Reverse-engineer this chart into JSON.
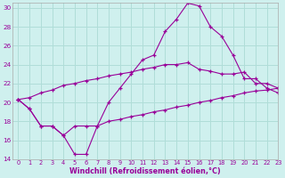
{
  "xlabel": "Windchill (Refroidissement éolien,°C)",
  "ylabel": "",
  "xlim": [
    -0.5,
    23
  ],
  "ylim": [
    14,
    30.5
  ],
  "xticks": [
    0,
    1,
    2,
    3,
    4,
    5,
    6,
    7,
    8,
    9,
    10,
    11,
    12,
    13,
    14,
    15,
    16,
    17,
    18,
    19,
    20,
    21,
    22,
    23
  ],
  "yticks": [
    14,
    16,
    18,
    20,
    22,
    24,
    26,
    28,
    30
  ],
  "bg_color": "#cff0ee",
  "grid_color": "#b0ddd8",
  "line_color": "#990099",
  "line1_x": [
    0,
    1,
    2,
    3,
    4,
    5,
    6,
    7,
    8,
    9,
    10,
    11,
    12,
    13,
    14,
    15,
    16,
    17,
    18,
    19,
    20,
    21,
    22,
    23
  ],
  "line1_y": [
    20.3,
    19.3,
    17.5,
    17.5,
    16.5,
    14.5,
    14.5,
    17.5,
    20.0,
    21.5,
    23.0,
    24.5,
    25.0,
    27.5,
    28.8,
    30.5,
    30.2,
    28.0,
    27.0,
    25.0,
    22.5,
    22.5,
    21.5,
    21.0
  ],
  "line2_x": [
    0,
    1,
    2,
    3,
    4,
    5,
    6,
    7,
    8,
    9,
    10,
    11,
    12,
    13,
    14,
    15,
    16,
    17,
    18,
    19,
    20,
    21,
    22,
    23
  ],
  "line2_y": [
    20.3,
    20.5,
    21.0,
    21.3,
    21.8,
    22.0,
    22.3,
    22.5,
    22.8,
    23.0,
    23.2,
    23.5,
    23.7,
    24.0,
    24.0,
    24.2,
    23.5,
    23.3,
    23.0,
    23.0,
    23.2,
    22.0,
    22.0,
    21.5
  ],
  "line3_x": [
    0,
    1,
    2,
    3,
    4,
    5,
    6,
    7,
    8,
    9,
    10,
    11,
    12,
    13,
    14,
    15,
    16,
    17,
    18,
    19,
    20,
    21,
    22,
    23
  ],
  "line3_y": [
    20.3,
    19.3,
    17.5,
    17.5,
    16.5,
    17.5,
    17.5,
    17.5,
    18.0,
    18.2,
    18.5,
    18.7,
    19.0,
    19.2,
    19.5,
    19.7,
    20.0,
    20.2,
    20.5,
    20.7,
    21.0,
    21.2,
    21.3,
    21.5
  ]
}
